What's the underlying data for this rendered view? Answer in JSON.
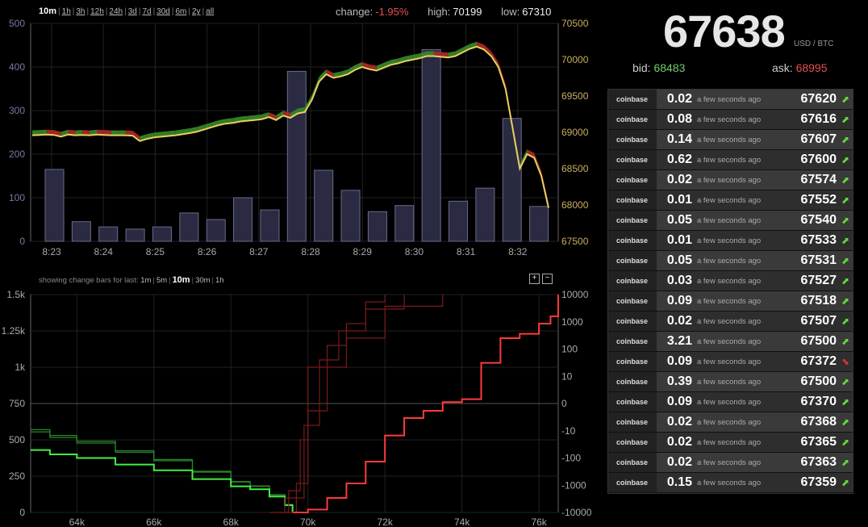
{
  "header": {
    "ranges": [
      "10m",
      "1h",
      "3h",
      "12h",
      "24h",
      "3d",
      "7d",
      "30d",
      "6m",
      "2y",
      "all"
    ],
    "active_range": "10m",
    "change_label": "change:",
    "change_value": "-1.95%",
    "high_label": "high:",
    "high_value": "70199",
    "low_label": "low:",
    "low_value": "67310"
  },
  "ticker": {
    "price": "67638",
    "unit": "USD / BTC",
    "bid_label": "bid:",
    "bid_value": "68483",
    "ask_label": "ask:",
    "ask_value": "68995"
  },
  "trades": [
    {
      "exchange": "coinbase",
      "amount": "0.02",
      "time": "a few seconds ago",
      "price": "67620",
      "dir": "up"
    },
    {
      "exchange": "coinbase",
      "amount": "0.08",
      "time": "a few seconds ago",
      "price": "67616",
      "dir": "up"
    },
    {
      "exchange": "coinbase",
      "amount": "0.14",
      "time": "a few seconds ago",
      "price": "67607",
      "dir": "up"
    },
    {
      "exchange": "coinbase",
      "amount": "0.62",
      "time": "a few seconds ago",
      "price": "67600",
      "dir": "up"
    },
    {
      "exchange": "coinbase",
      "amount": "0.02",
      "time": "a few seconds ago",
      "price": "67574",
      "dir": "up"
    },
    {
      "exchange": "coinbase",
      "amount": "0.01",
      "time": "a few seconds ago",
      "price": "67552",
      "dir": "up"
    },
    {
      "exchange": "coinbase",
      "amount": "0.05",
      "time": "a few seconds ago",
      "price": "67540",
      "dir": "up"
    },
    {
      "exchange": "coinbase",
      "amount": "0.01",
      "time": "a few seconds ago",
      "price": "67533",
      "dir": "up"
    },
    {
      "exchange": "coinbase",
      "amount": "0.05",
      "time": "a few seconds ago",
      "price": "67531",
      "dir": "up"
    },
    {
      "exchange": "coinbase",
      "amount": "0.03",
      "time": "a few seconds ago",
      "price": "67527",
      "dir": "up"
    },
    {
      "exchange": "coinbase",
      "amount": "0.09",
      "time": "a few seconds ago",
      "price": "67518",
      "dir": "up"
    },
    {
      "exchange": "coinbase",
      "amount": "0.02",
      "time": "a few seconds ago",
      "price": "67507",
      "dir": "up"
    },
    {
      "exchange": "coinbase",
      "amount": "3.21",
      "time": "a few seconds ago",
      "price": "67500",
      "dir": "up"
    },
    {
      "exchange": "coinbase",
      "amount": "0.09",
      "time": "a few seconds ago",
      "price": "67372",
      "dir": "down"
    },
    {
      "exchange": "coinbase",
      "amount": "0.39",
      "time": "a few seconds ago",
      "price": "67500",
      "dir": "up"
    },
    {
      "exchange": "coinbase",
      "amount": "0.09",
      "time": "a few seconds ago",
      "price": "67370",
      "dir": "up"
    },
    {
      "exchange": "coinbase",
      "amount": "0.02",
      "time": "a few seconds ago",
      "price": "67368",
      "dir": "up"
    },
    {
      "exchange": "coinbase",
      "amount": "0.02",
      "time": "a few seconds ago",
      "price": "67365",
      "dir": "up"
    },
    {
      "exchange": "coinbase",
      "amount": "0.02",
      "time": "a few seconds ago",
      "price": "67363",
      "dir": "up"
    },
    {
      "exchange": "coinbase",
      "amount": "0.15",
      "time": "a few seconds ago",
      "price": "67359",
      "dir": "up"
    }
  ],
  "change_bars": {
    "label": "showing change bars for last:",
    "options": [
      "1m",
      "5m",
      "10m",
      "30m",
      "1h"
    ],
    "active": "10m",
    "zoom_in": "+",
    "zoom_out": "−"
  },
  "colors": {
    "price_line": "#e8d060",
    "up": "#3a8a2a",
    "down": "#b02a2a",
    "bid_depth": "#44ee44",
    "ask_depth": "#ff3a3a",
    "volume_bar": "#2a2a42"
  },
  "chart_data": [
    {
      "type": "bar",
      "x_ticks": [
        "8:23",
        "8:24",
        "8:25",
        "8:26",
        "8:27",
        "8:28",
        "8:29",
        "8:30",
        "8:31",
        "8:32"
      ],
      "volume_axis_ticks": [
        "500",
        "400",
        "300",
        "200",
        "100",
        "0"
      ],
      "volume_ylim": [
        0,
        500
      ],
      "volumes": [
        165,
        45,
        33,
        28,
        33,
        65,
        50,
        100,
        72,
        390,
        163,
        117,
        68,
        82,
        440,
        92,
        122,
        282,
        80
      ],
      "price_axis_ticks": [
        "70500",
        "70000",
        "69500",
        "69000",
        "68500",
        "68000",
        "67500"
      ],
      "price_ylim": [
        67500,
        70500
      ],
      "price_series": [
        68960,
        68965,
        68970,
        68965,
        68940,
        68970,
        68960,
        68965,
        68960,
        68970,
        68965,
        68960,
        68960,
        68960,
        68955,
        68880,
        68910,
        68930,
        68940,
        68950,
        68960,
        68975,
        68990,
        69010,
        69040,
        69070,
        69100,
        69120,
        69130,
        69150,
        69160,
        69170,
        69180,
        69210,
        69170,
        69230,
        69200,
        69260,
        69280,
        69450,
        69700,
        69800,
        69750,
        69770,
        69800,
        69860,
        69900,
        69870,
        69850,
        69890,
        69930,
        69950,
        69980,
        70000,
        70020,
        70050,
        70050,
        70040,
        70030,
        70050,
        70100,
        70150,
        70180,
        70140,
        70050,
        69900,
        69600,
        69050,
        68500,
        68700,
        68650,
        68400,
        67960
      ]
    },
    {
      "type": "area",
      "x_ticks": [
        "64k",
        "66k",
        "68k",
        "70k",
        "72k",
        "74k",
        "76k"
      ],
      "xlim": [
        62800,
        76500
      ],
      "left_axis_ticks": [
        "1.5k",
        "1.25k",
        "1k",
        "750",
        "500",
        "250",
        "0"
      ],
      "left_ylim": [
        0,
        1500
      ],
      "right_axis_ticks": [
        "10000",
        "1000",
        "100",
        "10",
        "0",
        "-10",
        "-100",
        "-1000",
        "-10000"
      ],
      "bid_depth": [
        [
          62800,
          430
        ],
        [
          63300,
          400
        ],
        [
          64000,
          375
        ],
        [
          65000,
          330
        ],
        [
          66000,
          290
        ],
        [
          67000,
          230
        ],
        [
          68000,
          180
        ],
        [
          68500,
          160
        ],
        [
          69000,
          110
        ],
        [
          69400,
          50
        ],
        [
          69600,
          5
        ]
      ],
      "ask_depth": [
        [
          69600,
          0
        ],
        [
          70000,
          20
        ],
        [
          70500,
          100
        ],
        [
          71000,
          200
        ],
        [
          71500,
          350
        ],
        [
          72000,
          530
        ],
        [
          72500,
          650
        ],
        [
          73000,
          700
        ],
        [
          73500,
          760
        ],
        [
          74000,
          780
        ],
        [
          74500,
          1030
        ],
        [
          75000,
          1200
        ],
        [
          75500,
          1230
        ],
        [
          76000,
          1300
        ],
        [
          76300,
          1350
        ],
        [
          76500,
          1500
        ]
      ]
    }
  ]
}
